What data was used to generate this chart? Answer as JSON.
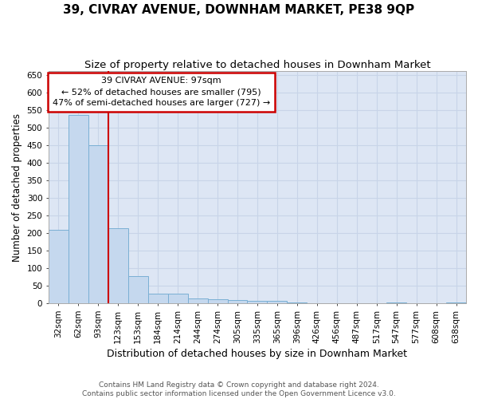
{
  "title": "39, CIVRAY AVENUE, DOWNHAM MARKET, PE38 9QP",
  "subtitle": "Size of property relative to detached houses in Downham Market",
  "xlabel": "Distribution of detached houses by size in Downham Market",
  "ylabel": "Number of detached properties",
  "categories": [
    "32sqm",
    "62sqm",
    "93sqm",
    "123sqm",
    "153sqm",
    "184sqm",
    "214sqm",
    "244sqm",
    "274sqm",
    "305sqm",
    "335sqm",
    "365sqm",
    "396sqm",
    "426sqm",
    "456sqm",
    "487sqm",
    "517sqm",
    "547sqm",
    "577sqm",
    "608sqm",
    "638sqm"
  ],
  "values": [
    210,
    535,
    450,
    213,
    78,
    28,
    28,
    15,
    12,
    10,
    7,
    7,
    3,
    1,
    1,
    1,
    1,
    3,
    1,
    1,
    3
  ],
  "bar_color": "#c5d8ee",
  "bar_edge_color": "#7aafd4",
  "vline_x": 2.5,
  "vline_color": "#cc0000",
  "annotation_text": "39 CIVRAY AVENUE: 97sqm\n← 52% of detached houses are smaller (795)\n47% of semi-detached houses are larger (727) →",
  "annotation_box_facecolor": "#ffffff",
  "annotation_box_edgecolor": "#cc0000",
  "grid_color": "#c8d4e8",
  "plot_bg_color": "#dde6f4",
  "fig_bg_color": "#ffffff",
  "footer_text": "Contains HM Land Registry data © Crown copyright and database right 2024.\nContains public sector information licensed under the Open Government Licence v3.0.",
  "title_fontsize": 11,
  "subtitle_fontsize": 9.5,
  "ylabel_fontsize": 8.5,
  "xlabel_fontsize": 9,
  "tick_fontsize": 7.5,
  "annotation_fontsize": 8,
  "footer_fontsize": 6.5,
  "ylim": [
    0,
    660
  ],
  "yticks": [
    0,
    50,
    100,
    150,
    200,
    250,
    300,
    350,
    400,
    450,
    500,
    550,
    600,
    650
  ]
}
